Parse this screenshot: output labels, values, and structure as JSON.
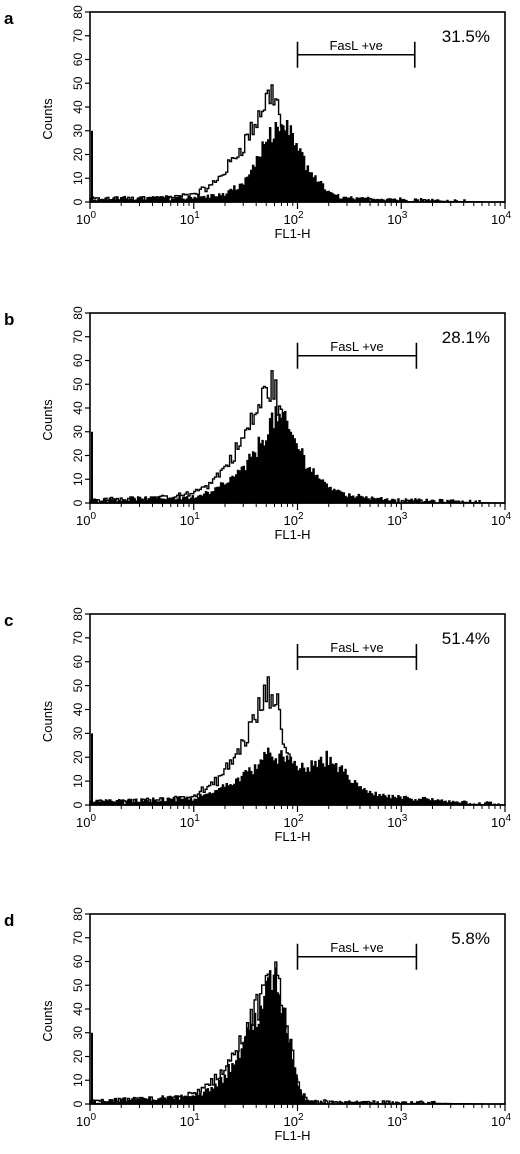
{
  "chart_data": [
    {
      "type": "histogram",
      "panel_label": "a",
      "xlabel": "FL1-H",
      "ylabel": "Counts",
      "x_scale": "log",
      "xlim": [
        1,
        10000
      ],
      "ylim": [
        0,
        80
      ],
      "x_ticks": [
        {
          "base": "10",
          "exp": "0"
        },
        {
          "base": "10",
          "exp": "1"
        },
        {
          "base": "10",
          "exp": "2"
        },
        {
          "base": "10",
          "exp": "3"
        },
        {
          "base": "10",
          "exp": "4"
        }
      ],
      "y_ticks": [
        "0",
        "10",
        "20",
        "30",
        "40",
        "50",
        "60",
        "70",
        "80"
      ],
      "gate": {
        "label": "FasL +ve",
        "from": 100,
        "to": 1350,
        "level": 62
      },
      "percentage": "31.5%",
      "series": [
        {
          "style": "outline",
          "x": [
            1,
            5,
            10,
            15,
            20,
            25,
            30,
            38,
            45,
            52,
            58,
            62,
            66,
            72,
            80,
            90,
            100,
            115,
            140,
            200,
            300,
            500,
            1000,
            10000
          ],
          "y": [
            1,
            1.5,
            3,
            7,
            13,
            19,
            24,
            32,
            39,
            44,
            47,
            44,
            38,
            30,
            22,
            14,
            9,
            5,
            3,
            1.5,
            1,
            0.5,
            0.3,
            0
          ]
        },
        {
          "style": "filled",
          "x": [
            1,
            10,
            20,
            30,
            40,
            50,
            60,
            70,
            80,
            90,
            100,
            120,
            150,
            200,
            250,
            300,
            400,
            600,
            1000,
            3000,
            10000
          ],
          "y": [
            1,
            2,
            3,
            8,
            17,
            24,
            30,
            31,
            30,
            27,
            23,
            16,
            10,
            4,
            2,
            1.5,
            1,
            1.5,
            1,
            0.3,
            0
          ]
        }
      ]
    },
    {
      "type": "histogram",
      "panel_label": "b",
      "xlabel": "FL1-H",
      "ylabel": "Counts",
      "x_scale": "log",
      "xlim": [
        1,
        10000
      ],
      "ylim": [
        0,
        80
      ],
      "x_ticks": [
        {
          "base": "10",
          "exp": "0"
        },
        {
          "base": "10",
          "exp": "1"
        },
        {
          "base": "10",
          "exp": "2"
        },
        {
          "base": "10",
          "exp": "3"
        },
        {
          "base": "10",
          "exp": "4"
        }
      ],
      "y_ticks": [
        "0",
        "10",
        "20",
        "30",
        "40",
        "50",
        "60",
        "70",
        "80"
      ],
      "gate": {
        "label": "FasL +ve",
        "from": 100,
        "to": 1400,
        "level": 62
      },
      "percentage": "28.1%",
      "series": [
        {
          "style": "outline",
          "x": [
            1,
            5,
            10,
            15,
            20,
            25,
            30,
            38,
            45,
            52,
            58,
            62,
            66,
            72,
            80,
            90,
            100,
            115,
            140,
            200,
            300,
            500,
            1000,
            10000
          ],
          "y": [
            1,
            2,
            4,
            9,
            15,
            21,
            27,
            36,
            43,
            48,
            50,
            46,
            40,
            33,
            26,
            19,
            13,
            8,
            5,
            3,
            2,
            1,
            0.5,
            0
          ]
        },
        {
          "style": "filled",
          "x": [
            1,
            10,
            15,
            20,
            30,
            40,
            50,
            60,
            70,
            80,
            90,
            100,
            120,
            150,
            200,
            250,
            300,
            400,
            600,
            1000,
            3000,
            10000
          ],
          "y": [
            1,
            2.5,
            5,
            8,
            14,
            22,
            30,
            36,
            35,
            32,
            28,
            24,
            18,
            12,
            7,
            5,
            3.5,
            2.5,
            2,
            1,
            0.5,
            0
          ]
        }
      ]
    },
    {
      "type": "histogram",
      "panel_label": "c",
      "xlabel": "FL1-H",
      "ylabel": "Counts",
      "x_scale": "log",
      "xlim": [
        1,
        10000
      ],
      "ylim": [
        0,
        80
      ],
      "x_ticks": [
        {
          "base": "10",
          "exp": "0"
        },
        {
          "base": "10",
          "exp": "1"
        },
        {
          "base": "10",
          "exp": "2"
        },
        {
          "base": "10",
          "exp": "3"
        },
        {
          "base": "10",
          "exp": "4"
        }
      ],
      "y_ticks": [
        "0",
        "10",
        "20",
        "30",
        "40",
        "50",
        "60",
        "70",
        "80"
      ],
      "gate": {
        "label": "FasL +ve",
        "from": 100,
        "to": 1400,
        "level": 62
      },
      "percentage": "51.4%",
      "series": [
        {
          "style": "outline",
          "x": [
            1,
            5,
            10,
            15,
            20,
            25,
            30,
            38,
            45,
            52,
            58,
            62,
            66,
            72,
            80,
            90,
            100,
            115,
            140,
            200,
            300,
            500,
            1000,
            10000
          ],
          "y": [
            1,
            2,
            4,
            8,
            14,
            20,
            26,
            35,
            42,
            47,
            48,
            44,
            38,
            30,
            22,
            16,
            11,
            7,
            4,
            2,
            1,
            1,
            0.5,
            0
          ]
        },
        {
          "style": "filled",
          "x": [
            1,
            10,
            15,
            20,
            30,
            40,
            50,
            60,
            70,
            80,
            100,
            120,
            150,
            180,
            200,
            250,
            300,
            400,
            600,
            1000,
            2000,
            5000,
            10000
          ],
          "y": [
            1,
            2.5,
            5,
            8,
            12,
            17,
            20,
            21,
            20,
            18,
            16,
            15,
            17,
            19,
            19,
            16,
            12,
            7,
            4,
            3,
            2,
            1,
            0
          ]
        }
      ]
    },
    {
      "type": "histogram",
      "panel_label": "d",
      "xlabel": "FL1-H",
      "ylabel": "Counts",
      "x_scale": "log",
      "xlim": [
        1,
        10000
      ],
      "ylim": [
        0,
        80
      ],
      "x_ticks": [
        {
          "base": "10",
          "exp": "0"
        },
        {
          "base": "10",
          "exp": "1"
        },
        {
          "base": "10",
          "exp": "2"
        },
        {
          "base": "10",
          "exp": "3"
        },
        {
          "base": "10",
          "exp": "4"
        }
      ],
      "y_ticks": [
        "0",
        "10",
        "20",
        "30",
        "40",
        "50",
        "60",
        "70",
        "80"
      ],
      "gate": {
        "label": "FasL +ve",
        "from": 100,
        "to": 1400,
        "level": 62
      },
      "percentage": "5.8%",
      "series": [
        {
          "style": "outline",
          "x": [
            1,
            5,
            10,
            15,
            20,
            25,
            30,
            38,
            45,
            52,
            58,
            62,
            66,
            72,
            80,
            90,
            100,
            110,
            130,
            200,
            1000,
            10000
          ],
          "y": [
            1,
            2,
            4,
            9,
            15,
            22,
            28,
            37,
            45,
            50,
            53,
            52,
            48,
            40,
            32,
            20,
            10,
            4,
            1,
            0.5,
            0.3,
            0
          ]
        },
        {
          "style": "filled",
          "x": [
            1,
            10,
            15,
            20,
            25,
            30,
            38,
            45,
            52,
            58,
            62,
            66,
            72,
            80,
            90,
            100,
            110,
            130,
            200,
            1000,
            10000
          ],
          "y": [
            1,
            3,
            7,
            12,
            18,
            25,
            34,
            42,
            48,
            52,
            51,
            48,
            40,
            32,
            20,
            10,
            4,
            1,
            0.5,
            0.3,
            0
          ]
        }
      ]
    }
  ]
}
